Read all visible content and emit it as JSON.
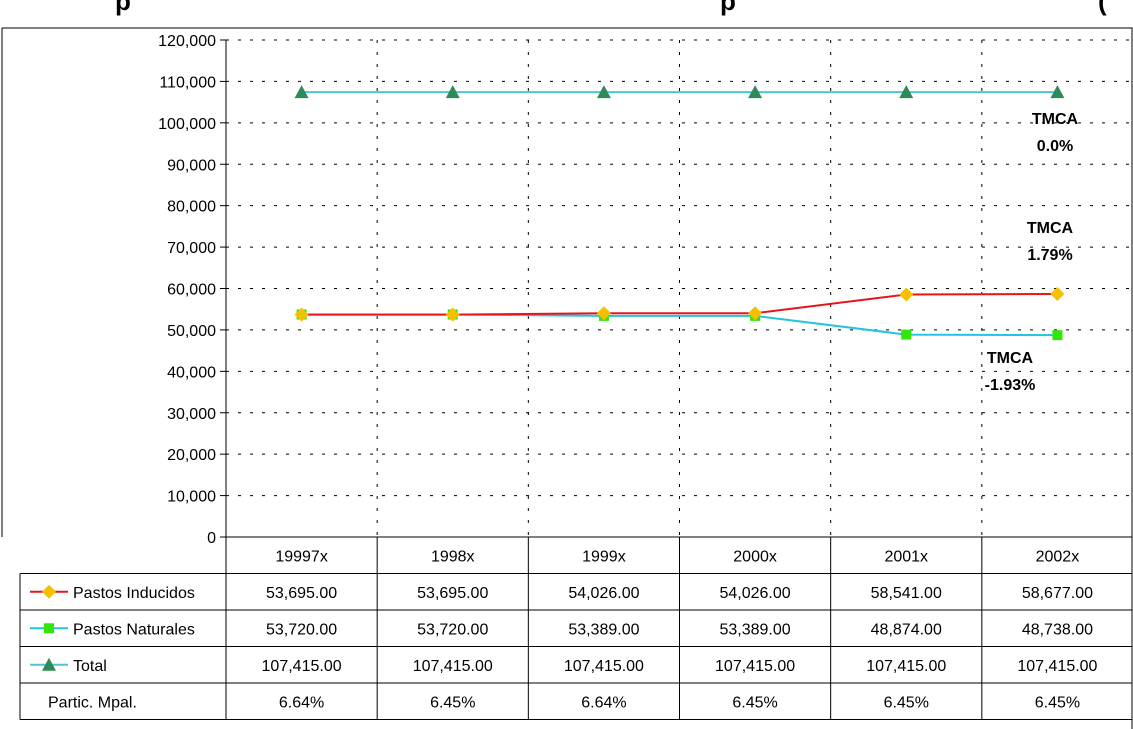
{
  "title": {
    "left": "p",
    "middle": "p",
    "right": "("
  },
  "colors": {
    "pastos_inducidos_line": "#e8141b",
    "pastos_inducidos_marker": "#f5c000",
    "pastos_naturales_line": "#22c4e0",
    "pastos_naturales_marker": "#33e60a",
    "total_line": "#4cc6d6",
    "total_marker": "#2e8b57",
    "grid": "#000000"
  },
  "annotations": [
    {
      "line1": "TMCA",
      "line2": "0.0%",
      "series": "Total"
    },
    {
      "line1": "TMCA",
      "line2": "1.79%",
      "series": "Pastos Inducidos"
    },
    {
      "line1": "TMCA",
      "line2": "-1.93%",
      "series": "Pastos Naturales"
    }
  ],
  "chart_data": {
    "type": "line",
    "categories": [
      "19997x",
      "1998x",
      "1999x",
      "2000x",
      "2001x",
      "2002x"
    ],
    "ylim": [
      0,
      120000
    ],
    "ytick_step": 10000,
    "ytick_labels": [
      "0",
      "10,000",
      "20,000",
      "30,000",
      "40,000",
      "50,000",
      "60,000",
      "70,000",
      "80,000",
      "90,000",
      "100,000",
      "110,000",
      "120,000"
    ],
    "grid": true,
    "legend": "data-table",
    "series": [
      {
        "name": "Pastos Inducidos",
        "marker": "diamond",
        "values": [
          53695,
          53695,
          54026,
          54026,
          58541,
          58677
        ],
        "labels": [
          "53,695.00",
          "53,695.00",
          "54,026.00",
          "54,026.00",
          "58,541.00",
          "58,677.00"
        ]
      },
      {
        "name": "Pastos Naturales",
        "marker": "square",
        "values": [
          53720,
          53720,
          53389,
          53389,
          48874,
          48738
        ],
        "labels": [
          "53,720.00",
          "53,720.00",
          "53,389.00",
          "53,389.00",
          "48,874.00",
          "48,738.00"
        ]
      },
      {
        "name": "Total",
        "marker": "triangle",
        "values": [
          107415,
          107415,
          107415,
          107415,
          107415,
          107415
        ],
        "labels": [
          "107,415.00",
          "107,415.00",
          "107,415.00",
          "107,415.00",
          "107,415.00",
          "107,415.00"
        ]
      }
    ],
    "extra_rows": [
      {
        "name": "Partic.  Mpal.",
        "labels": [
          "6.64%",
          "6.45%",
          "6.64%",
          "6.45%",
          "6.45%",
          "6.45%"
        ]
      }
    ]
  }
}
